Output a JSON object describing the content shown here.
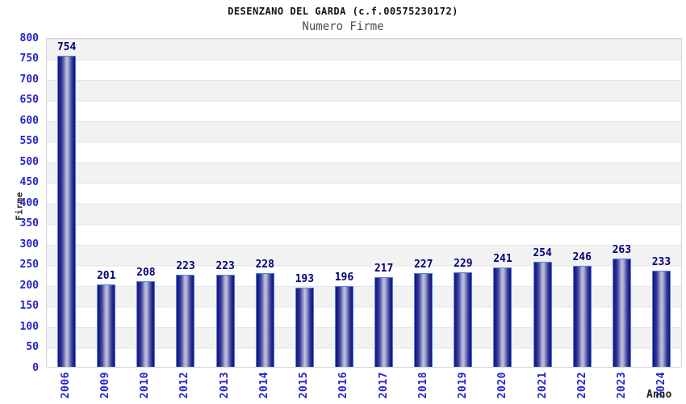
{
  "chart_data": {
    "type": "bar",
    "title": "DESENZANO DEL GARDA (c.f.00575230172)",
    "subtitle": "Numero Firme",
    "xlabel": "Anno",
    "ylabel": "Firme",
    "categories": [
      "2006",
      "2009",
      "2010",
      "2012",
      "2013",
      "2014",
      "2015",
      "2016",
      "2017",
      "2018",
      "2019",
      "2020",
      "2021",
      "2022",
      "2023",
      "2024"
    ],
    "values": [
      754,
      201,
      208,
      223,
      223,
      228,
      193,
      196,
      217,
      227,
      229,
      241,
      254,
      246,
      263,
      233
    ],
    "ylim": [
      0,
      800
    ],
    "ytick_step": 50,
    "yticks": [
      0,
      50,
      100,
      150,
      200,
      250,
      300,
      350,
      400,
      450,
      500,
      550,
      600,
      650,
      700,
      750,
      800
    ],
    "grid": "horizontal-bands",
    "legend": "none",
    "colors": {
      "tick_label_blue": "#2424cc",
      "value_label_navy": "#00007d",
      "bar_border_blue": "#4d82e8",
      "bar_edge_dark": "#16167a",
      "bar_center_light": "#c2c5e0",
      "band_gray": "#f2f2f2",
      "band_white": "#ffffff",
      "grid_line": "#e4e4e4",
      "plot_border": "#d3d3d3",
      "title_color": "#111111",
      "subtitle_color": "#4d4d4d",
      "axis_title_color": "#222222"
    }
  }
}
